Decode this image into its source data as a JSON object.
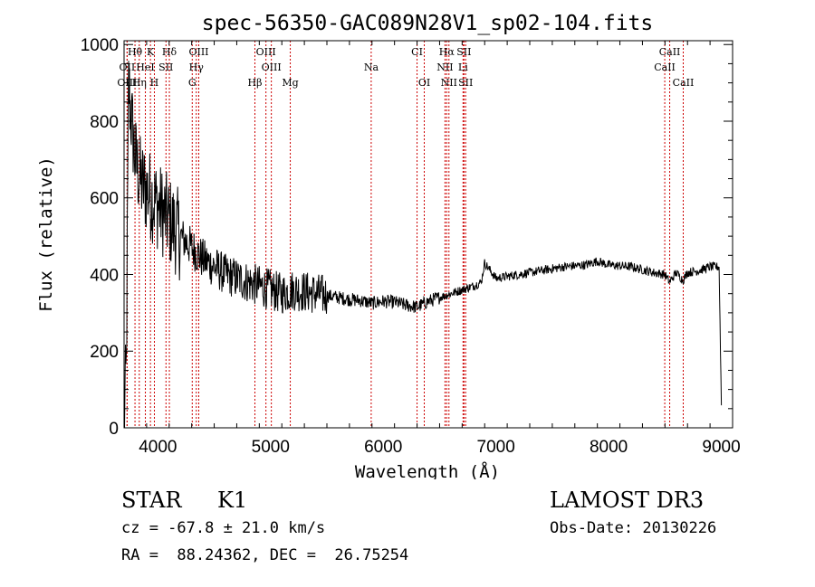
{
  "chart_data": {
    "type": "line",
    "title": "spec-56350-GAC089N28V1_sp02-104.fits",
    "xlabel": "Wavelength (Å)",
    "ylabel": "Flux (relative)",
    "xlim": [
      3700,
      9100
    ],
    "ylim": [
      0,
      1010
    ],
    "x_ticks": [
      4000,
      5000,
      6000,
      7000,
      8000,
      9000
    ],
    "y_ticks": [
      0,
      200,
      400,
      600,
      800,
      1000
    ],
    "grid": false,
    "spectrum_shape": {
      "name": "flux",
      "x": [
        3700,
        3720,
        3740,
        3760,
        3800,
        3850,
        3900,
        3950,
        4000,
        4050,
        4100,
        4200,
        4300,
        4400,
        4500,
        4600,
        4700,
        4800,
        4900,
        5000,
        5100,
        5200,
        5300,
        5400,
        5500,
        5600,
        5700,
        5800,
        5900,
        6000,
        6100,
        6200,
        6300,
        6400,
        6500,
        6600,
        6700,
        6800,
        6870,
        6900,
        7000,
        7200,
        7400,
        7600,
        7800,
        7900,
        8000,
        8200,
        8400,
        8500,
        8540,
        8600,
        8660,
        8700,
        8800,
        8900,
        8980,
        9000
      ],
      "y": [
        20,
        150,
        900,
        820,
        700,
        640,
        620,
        600,
        580,
        560,
        540,
        500,
        470,
        440,
        420,
        400,
        390,
        380,
        370,
        360,
        350,
        360,
        355,
        350,
        345,
        340,
        335,
        332,
        325,
        330,
        328,
        320,
        315,
        330,
        340,
        350,
        360,
        370,
        380,
        430,
        390,
        400,
        410,
        420,
        425,
        435,
        425,
        420,
        405,
        400,
        380,
        405,
        385,
        405,
        410,
        420,
        420,
        60
      ]
    },
    "lines": [
      {
        "label": "Hθ",
        "wave": 3797,
        "row": 0
      },
      {
        "label": "K",
        "wave": 3934,
        "row": 0
      },
      {
        "label": "Hδ",
        "wave": 4102,
        "row": 0
      },
      {
        "label": "OIII",
        "wave": 4363,
        "row": 0
      },
      {
        "label": "OIII",
        "wave": 4959,
        "row": 0
      },
      {
        "label": "CI",
        "wave": 6300,
        "row": 0
      },
      {
        "label": "Hα",
        "wave": 6563,
        "row": 0
      },
      {
        "label": "SII",
        "wave": 6716,
        "row": 0
      },
      {
        "label": "CaII",
        "wave": 8542,
        "row": 0
      },
      {
        "label": "OII",
        "wave": 3727,
        "row": 1
      },
      {
        "label": "HeI",
        "wave": 3889,
        "row": 1
      },
      {
        "label": "SII",
        "wave": 4072,
        "row": 1
      },
      {
        "label": "Hγ",
        "wave": 4341,
        "row": 1
      },
      {
        "label": "OIII",
        "wave": 5007,
        "row": 1
      },
      {
        "label": "Na",
        "wave": 5893,
        "row": 1
      },
      {
        "label": "NII",
        "wave": 6548,
        "row": 1
      },
      {
        "label": "Li",
        "wave": 6708,
        "row": 1
      },
      {
        "label": "CaII",
        "wave": 8498,
        "row": 1
      },
      {
        "label": "OIII",
        "wave": 3727,
        "row": 2
      },
      {
        "label": "Hη",
        "wave": 3835,
        "row": 2
      },
      {
        "label": "H",
        "wave": 3969,
        "row": 2
      },
      {
        "label": "G",
        "wave": 4305,
        "row": 2
      },
      {
        "label": "Hβ",
        "wave": 4861,
        "row": 2
      },
      {
        "label": "Mg",
        "wave": 5175,
        "row": 2
      },
      {
        "label": "OI",
        "wave": 6364,
        "row": 2
      },
      {
        "label": "NII",
        "wave": 6583,
        "row": 2
      },
      {
        "label": "SII",
        "wave": 6731,
        "row": 2
      },
      {
        "label": "CaII",
        "wave": 8662,
        "row": 2
      }
    ]
  },
  "info": {
    "object_class": "STAR",
    "subclass": "K1",
    "survey": "LAMOST DR3",
    "redshift": "cz = -67.8 ± 21.0 km/s",
    "obs_date": "Obs-Date: 20130226",
    "coords": "RA =  88.24362, DEC =  26.75254"
  },
  "colors": {
    "axes": "#000000",
    "spectrum": "#000000",
    "line_markers": "#cc0000"
  }
}
